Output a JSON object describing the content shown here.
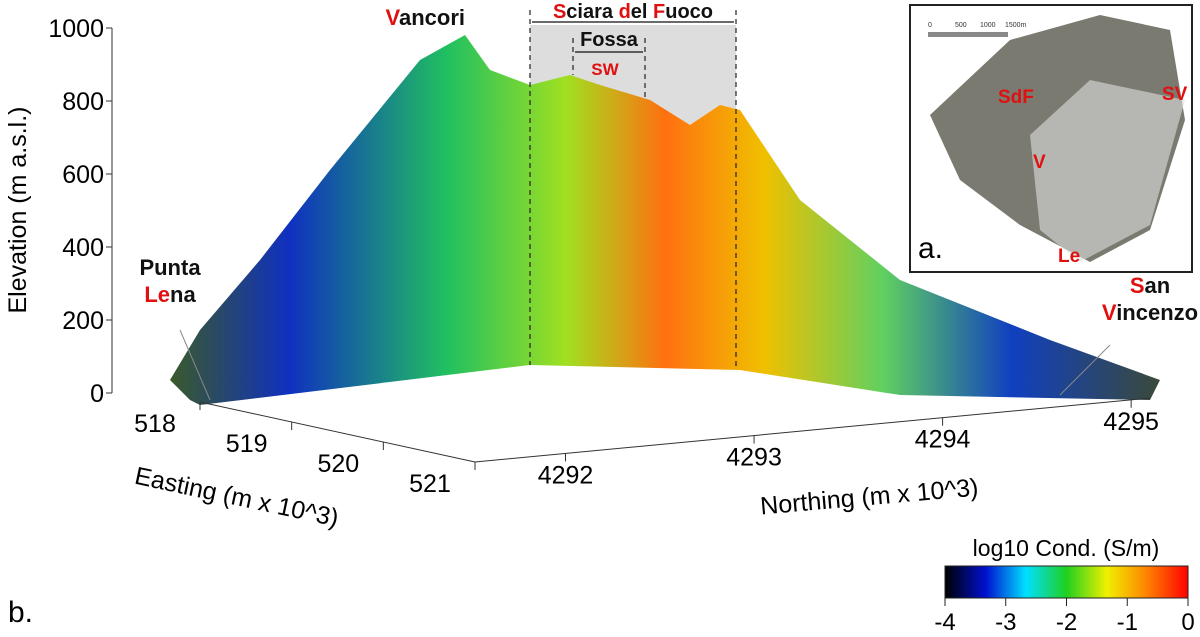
{
  "chart_data": {
    "type": "surface",
    "z_axis": {
      "title": "Elevation (m a.s.l.)",
      "lim": [
        0,
        1000
      ],
      "ticks": [
        0,
        200,
        400,
        600,
        800,
        1000
      ]
    },
    "x_axis": {
      "title": "Easting (m x 10^3)",
      "lim": [
        518,
        521
      ],
      "ticks": [
        518,
        519,
        520,
        521
      ]
    },
    "y_axis": {
      "title": "Northing (m x 10^3)",
      "lim": [
        4291.52,
        4295.1
      ],
      "ticks": [
        4292,
        4293,
        4294,
        4295
      ]
    },
    "colorbar": {
      "title": "log10 Cond. (S/m)",
      "lim": [
        -4,
        0
      ],
      "ticks": [
        -4,
        -3,
        -2,
        -1,
        0
      ],
      "colors": [
        "#000000",
        "#0010d0",
        "#00e0ff",
        "#20d020",
        "#f0f000",
        "#ff8000",
        "#ff0000"
      ]
    },
    "annotations": [
      {
        "lines": [
          [
            {
              "text": "V",
              "color": "#e01010"
            },
            {
              "text": "ancori",
              "color": "#111"
            }
          ]
        ]
      },
      {
        "lines": [
          [
            {
              "text": "S",
              "color": "#e01010"
            },
            {
              "text": "ciara ",
              "color": "#111"
            },
            {
              "text": "d",
              "color": "#e01010"
            },
            {
              "text": "el ",
              "color": "#111"
            },
            {
              "text": "F",
              "color": "#e01010"
            },
            {
              "text": "uoco",
              "color": "#111"
            }
          ]
        ]
      },
      {
        "lines": [
          [
            {
              "text": "Fossa",
              "color": "#111"
            }
          ]
        ]
      },
      {
        "lines": [
          [
            {
              "text": "SW",
              "color": "#e01010"
            }
          ]
        ]
      },
      {
        "lines": [
          [
            {
              "text": "Punta",
              "color": "#111"
            }
          ],
          [
            {
              "text": "Le",
              "color": "#e01010"
            },
            {
              "text": "na",
              "color": "#111"
            }
          ]
        ]
      },
      {
        "lines": [
          [
            {
              "text": "S",
              "color": "#e01010"
            },
            {
              "text": "an",
              "color": "#111"
            }
          ],
          [
            {
              "text": "V",
              "color": "#e01010"
            },
            {
              "text": "incenzo",
              "color": "#111"
            }
          ]
        ]
      }
    ],
    "panel_label": "b.",
    "inset": {
      "panel_label": "a.",
      "scale_labels": [
        "0",
        "500",
        "1000",
        "1500m"
      ],
      "labels": [
        "SdF",
        "SV",
        "V",
        "Le"
      ]
    }
  }
}
